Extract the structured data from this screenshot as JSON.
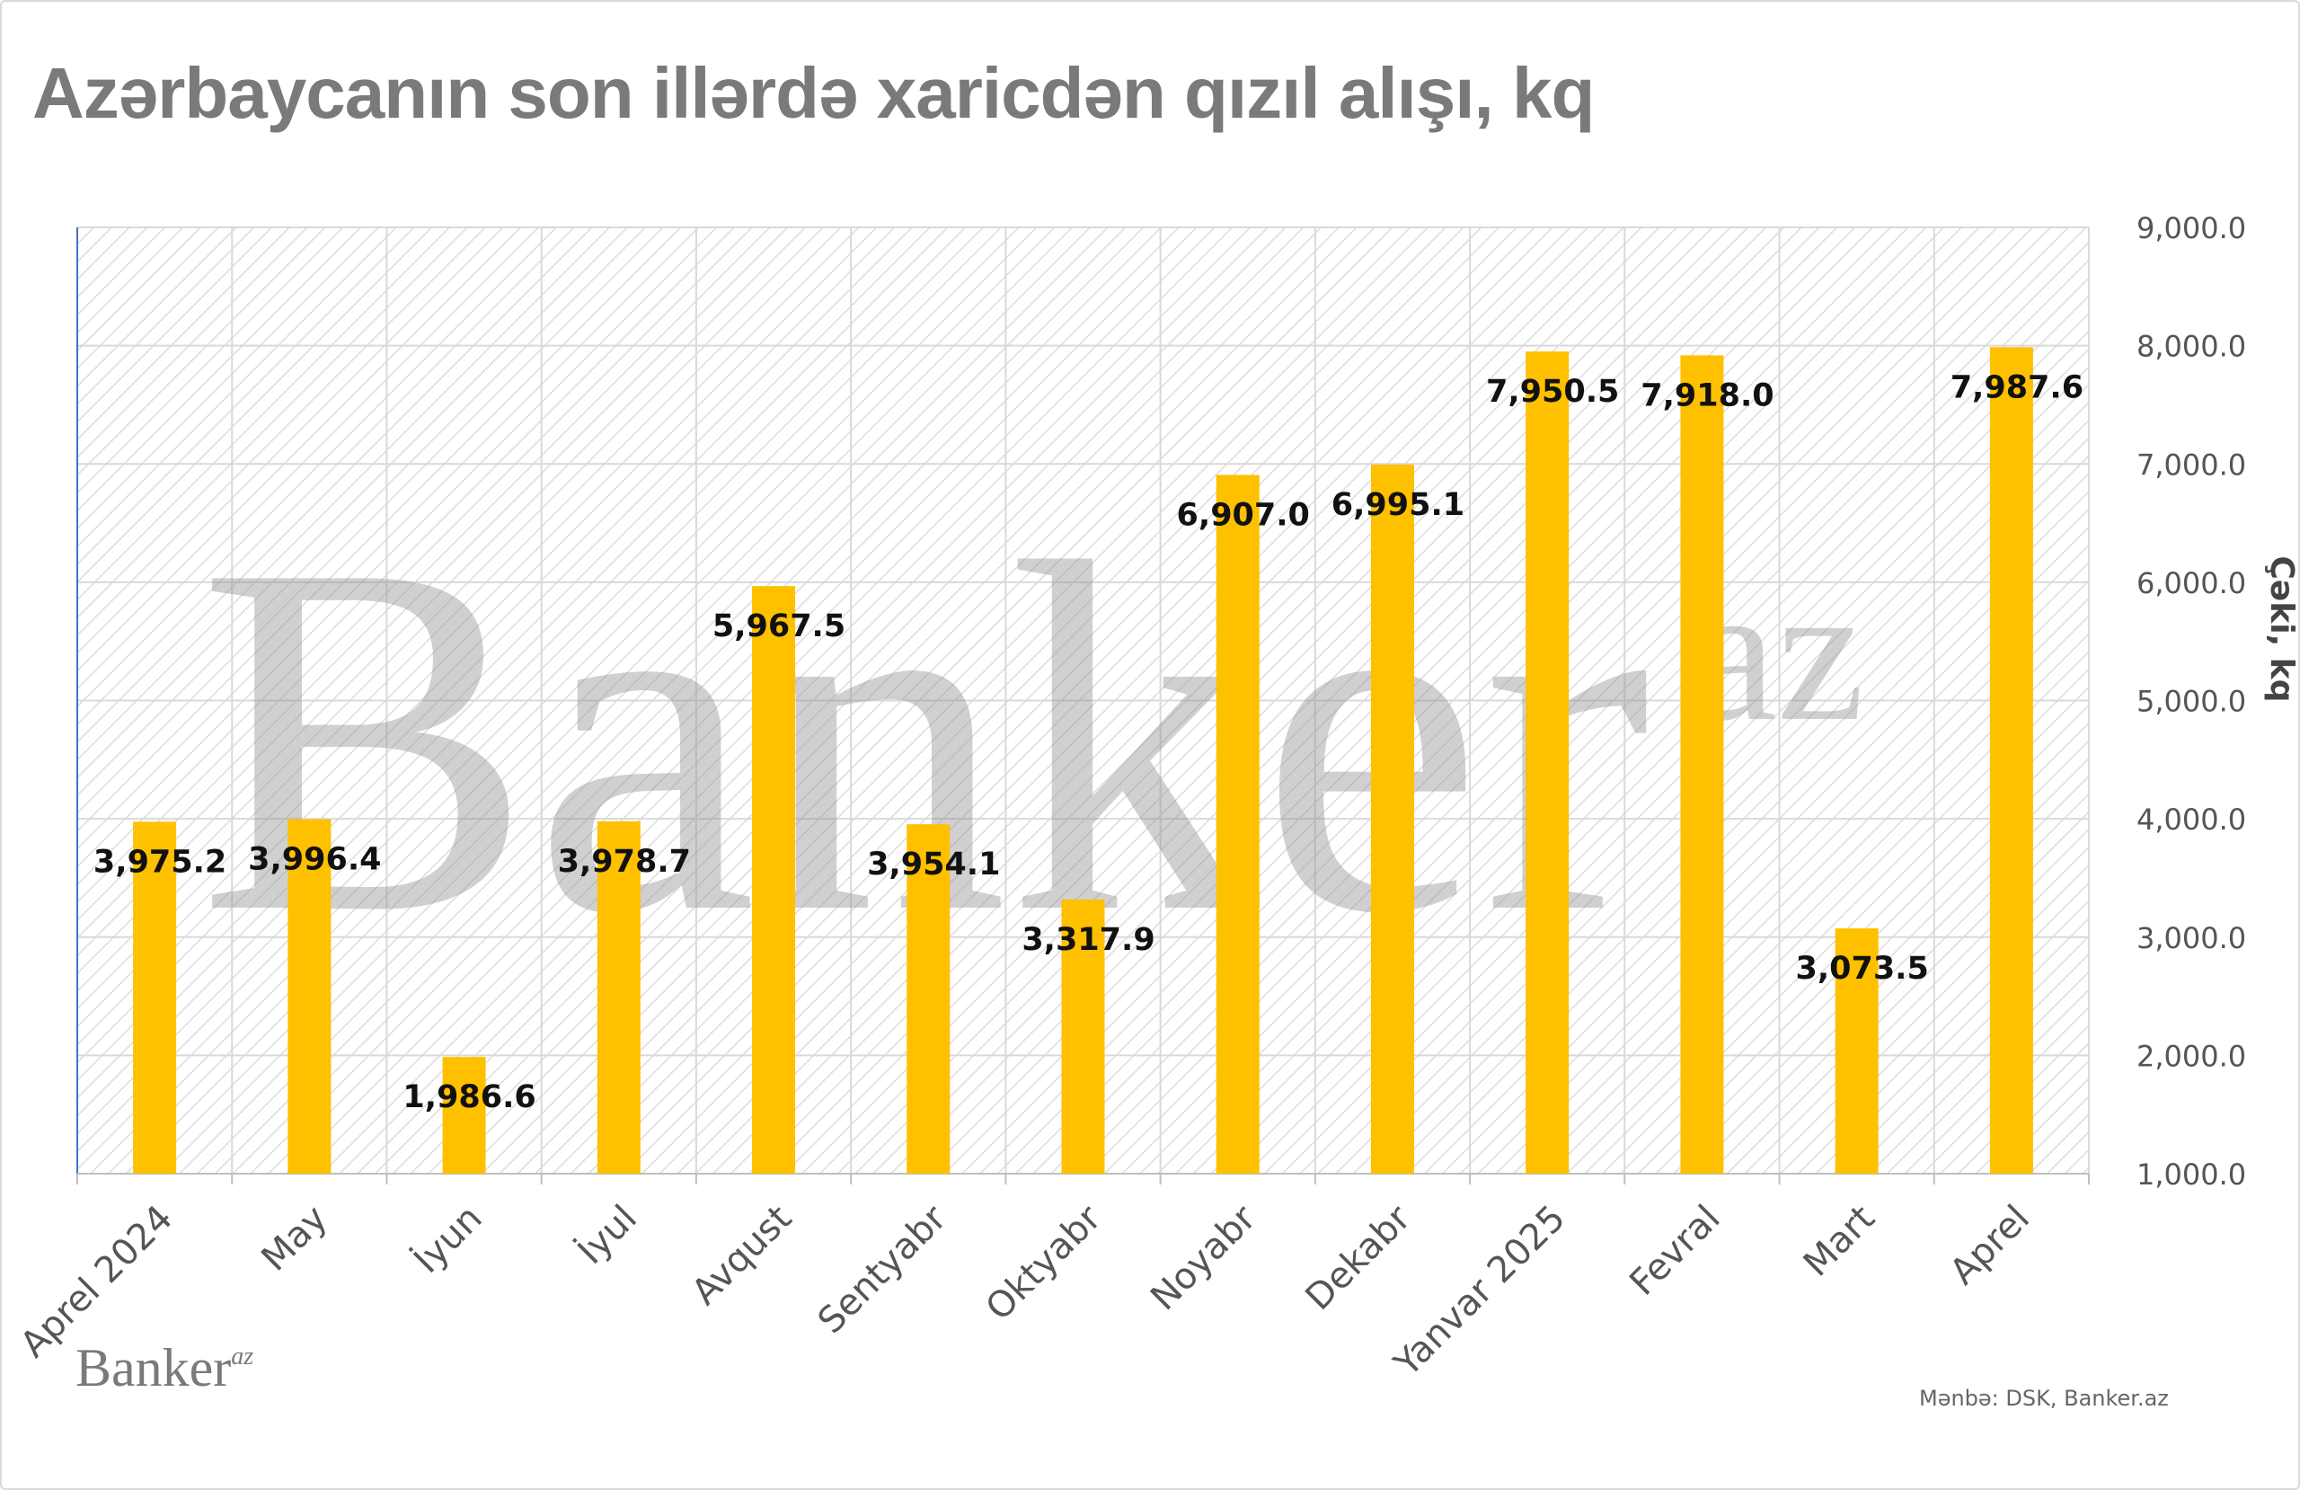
{
  "title": "Azərbaycanın son illərdə xaricdən qızıl alışı, kq",
  "source": "Mənbə: DSK, Banker.az",
  "logo": {
    "main": "Banker",
    "sup": "az"
  },
  "watermark": {
    "main": "Banker",
    "sup": "az"
  },
  "colors": {
    "bar": "#FFC000",
    "title": "#7a7a7a",
    "grid": "#d9d9d9"
  },
  "chart_data": {
    "type": "bar",
    "title": "Azərbaycanın son illərdə xaricdən qızıl alışı, kq",
    "xlabel": "",
    "ylabel": "Çəki, kq",
    "ylim": [
      1000,
      9000
    ],
    "ytick_step": 1000,
    "ytick_labels": [
      "1,000.0",
      "2,000.0",
      "3,000.0",
      "4,000.0",
      "5,000.0",
      "6,000.0",
      "7,000.0",
      "8,000.0",
      "9,000.0"
    ],
    "y_axis_side": "right",
    "grid": true,
    "categories": [
      "Aprel  2024",
      "May",
      "İyun",
      "İyul",
      "Avqust",
      "Sentyabr",
      "Oktyabr",
      "Noyabr",
      "Dekabr",
      "Yanvar 2025",
      "Fevral",
      "Mart",
      "Aprel"
    ],
    "values": [
      3975.2,
      3996.4,
      1986.6,
      3978.7,
      5967.5,
      3954.1,
      3317.9,
      6907.0,
      6995.1,
      7950.5,
      7918.0,
      3073.5,
      7987.6
    ],
    "data_labels": [
      "3,975.2",
      "3,996.4",
      "1,986.6",
      "3,978.7",
      "5,967.5",
      "3,954.1",
      "3,317.9",
      "6,907.0",
      "6,995.1",
      "7,950.5",
      "7,918.0",
      "3,073.5",
      "7,987.6"
    ]
  }
}
